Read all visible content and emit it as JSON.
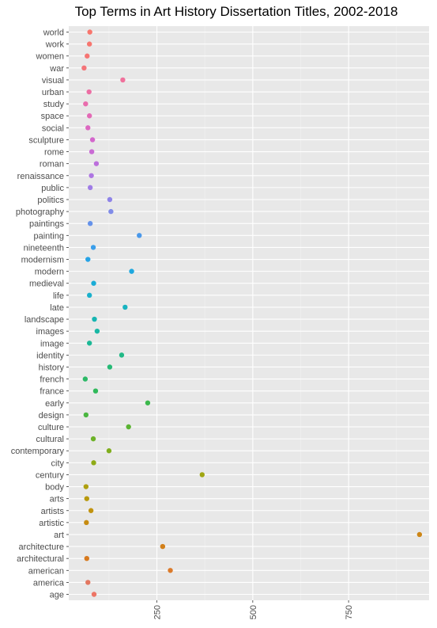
{
  "chart_data": {
    "type": "scatter",
    "title": "Top Terms in Art History Dissertation Titles, 2002-2018",
    "xlabel": "",
    "ylabel": "",
    "xlim": [
      20,
      960
    ],
    "x_ticks": [
      250,
      500,
      750
    ],
    "x_tick_labels": [
      "250",
      "500",
      "750"
    ],
    "x_tick_rotation": "vertical",
    "grid": true,
    "legend": "none",
    "panel_background": "#e8e8e8",
    "categories_top_to_bottom": [
      "world",
      "work",
      "women",
      "war",
      "visual",
      "urban",
      "study",
      "space",
      "social",
      "sculpture",
      "rome",
      "roman",
      "renaissance",
      "public",
      "politics",
      "photography",
      "paintings",
      "painting",
      "nineteenth",
      "modernism",
      "modern",
      "medieval",
      "life",
      "late",
      "landscape",
      "images",
      "image",
      "identity",
      "history",
      "french",
      "france",
      "early",
      "design",
      "culture",
      "cultural",
      "contemporary",
      "city",
      "century",
      "body",
      "arts",
      "artists",
      "artistic",
      "art",
      "architecture",
      "architectural",
      "american",
      "america",
      "age"
    ],
    "values": [
      75,
      74,
      68,
      60,
      161,
      73,
      64,
      74,
      70,
      82,
      80,
      92,
      79,
      76,
      127,
      130,
      76,
      204,
      84,
      70,
      184,
      85,
      74,
      167,
      87,
      94,
      74,
      158,
      127,
      63,
      90,
      226,
      65,
      176,
      84,
      125,
      85,
      368,
      65,
      67,
      78,
      66,
      935,
      265,
      67,
      285,
      70,
      86
    ],
    "colors": [
      "#f8766d",
      "#f7766f",
      "#f67573",
      "#f47478",
      "#f0719c",
      "#ec6fa4",
      "#e96dad",
      "#e36ab6",
      "#dc68c1",
      "#d367cc",
      "#c96bd4",
      "#bc6fdc",
      "#ae76e2",
      "#9f7ce6",
      "#8f84e8",
      "#7f8be8",
      "#6592ea",
      "#4a98ea",
      "#3a9eea",
      "#26a3e6",
      "#1ea8df",
      "#1aacd6",
      "#19b0cb",
      "#18b3c0",
      "#17b5b2",
      "#19b7a4",
      "#1cb896",
      "#21b986",
      "#27ba76",
      "#2cb967",
      "#30b95b",
      "#3cb84c",
      "#4ab640",
      "#5bb433",
      "#6db228",
      "#80ae1e",
      "#8fab17",
      "#a0a612",
      "#ae9f0f",
      "#b8990e",
      "#c1930f",
      "#c78c12",
      "#cd8616",
      "#d28019",
      "#d77a1f",
      "#db7a2a",
      "#e37760",
      "#ed7565"
    ]
  }
}
